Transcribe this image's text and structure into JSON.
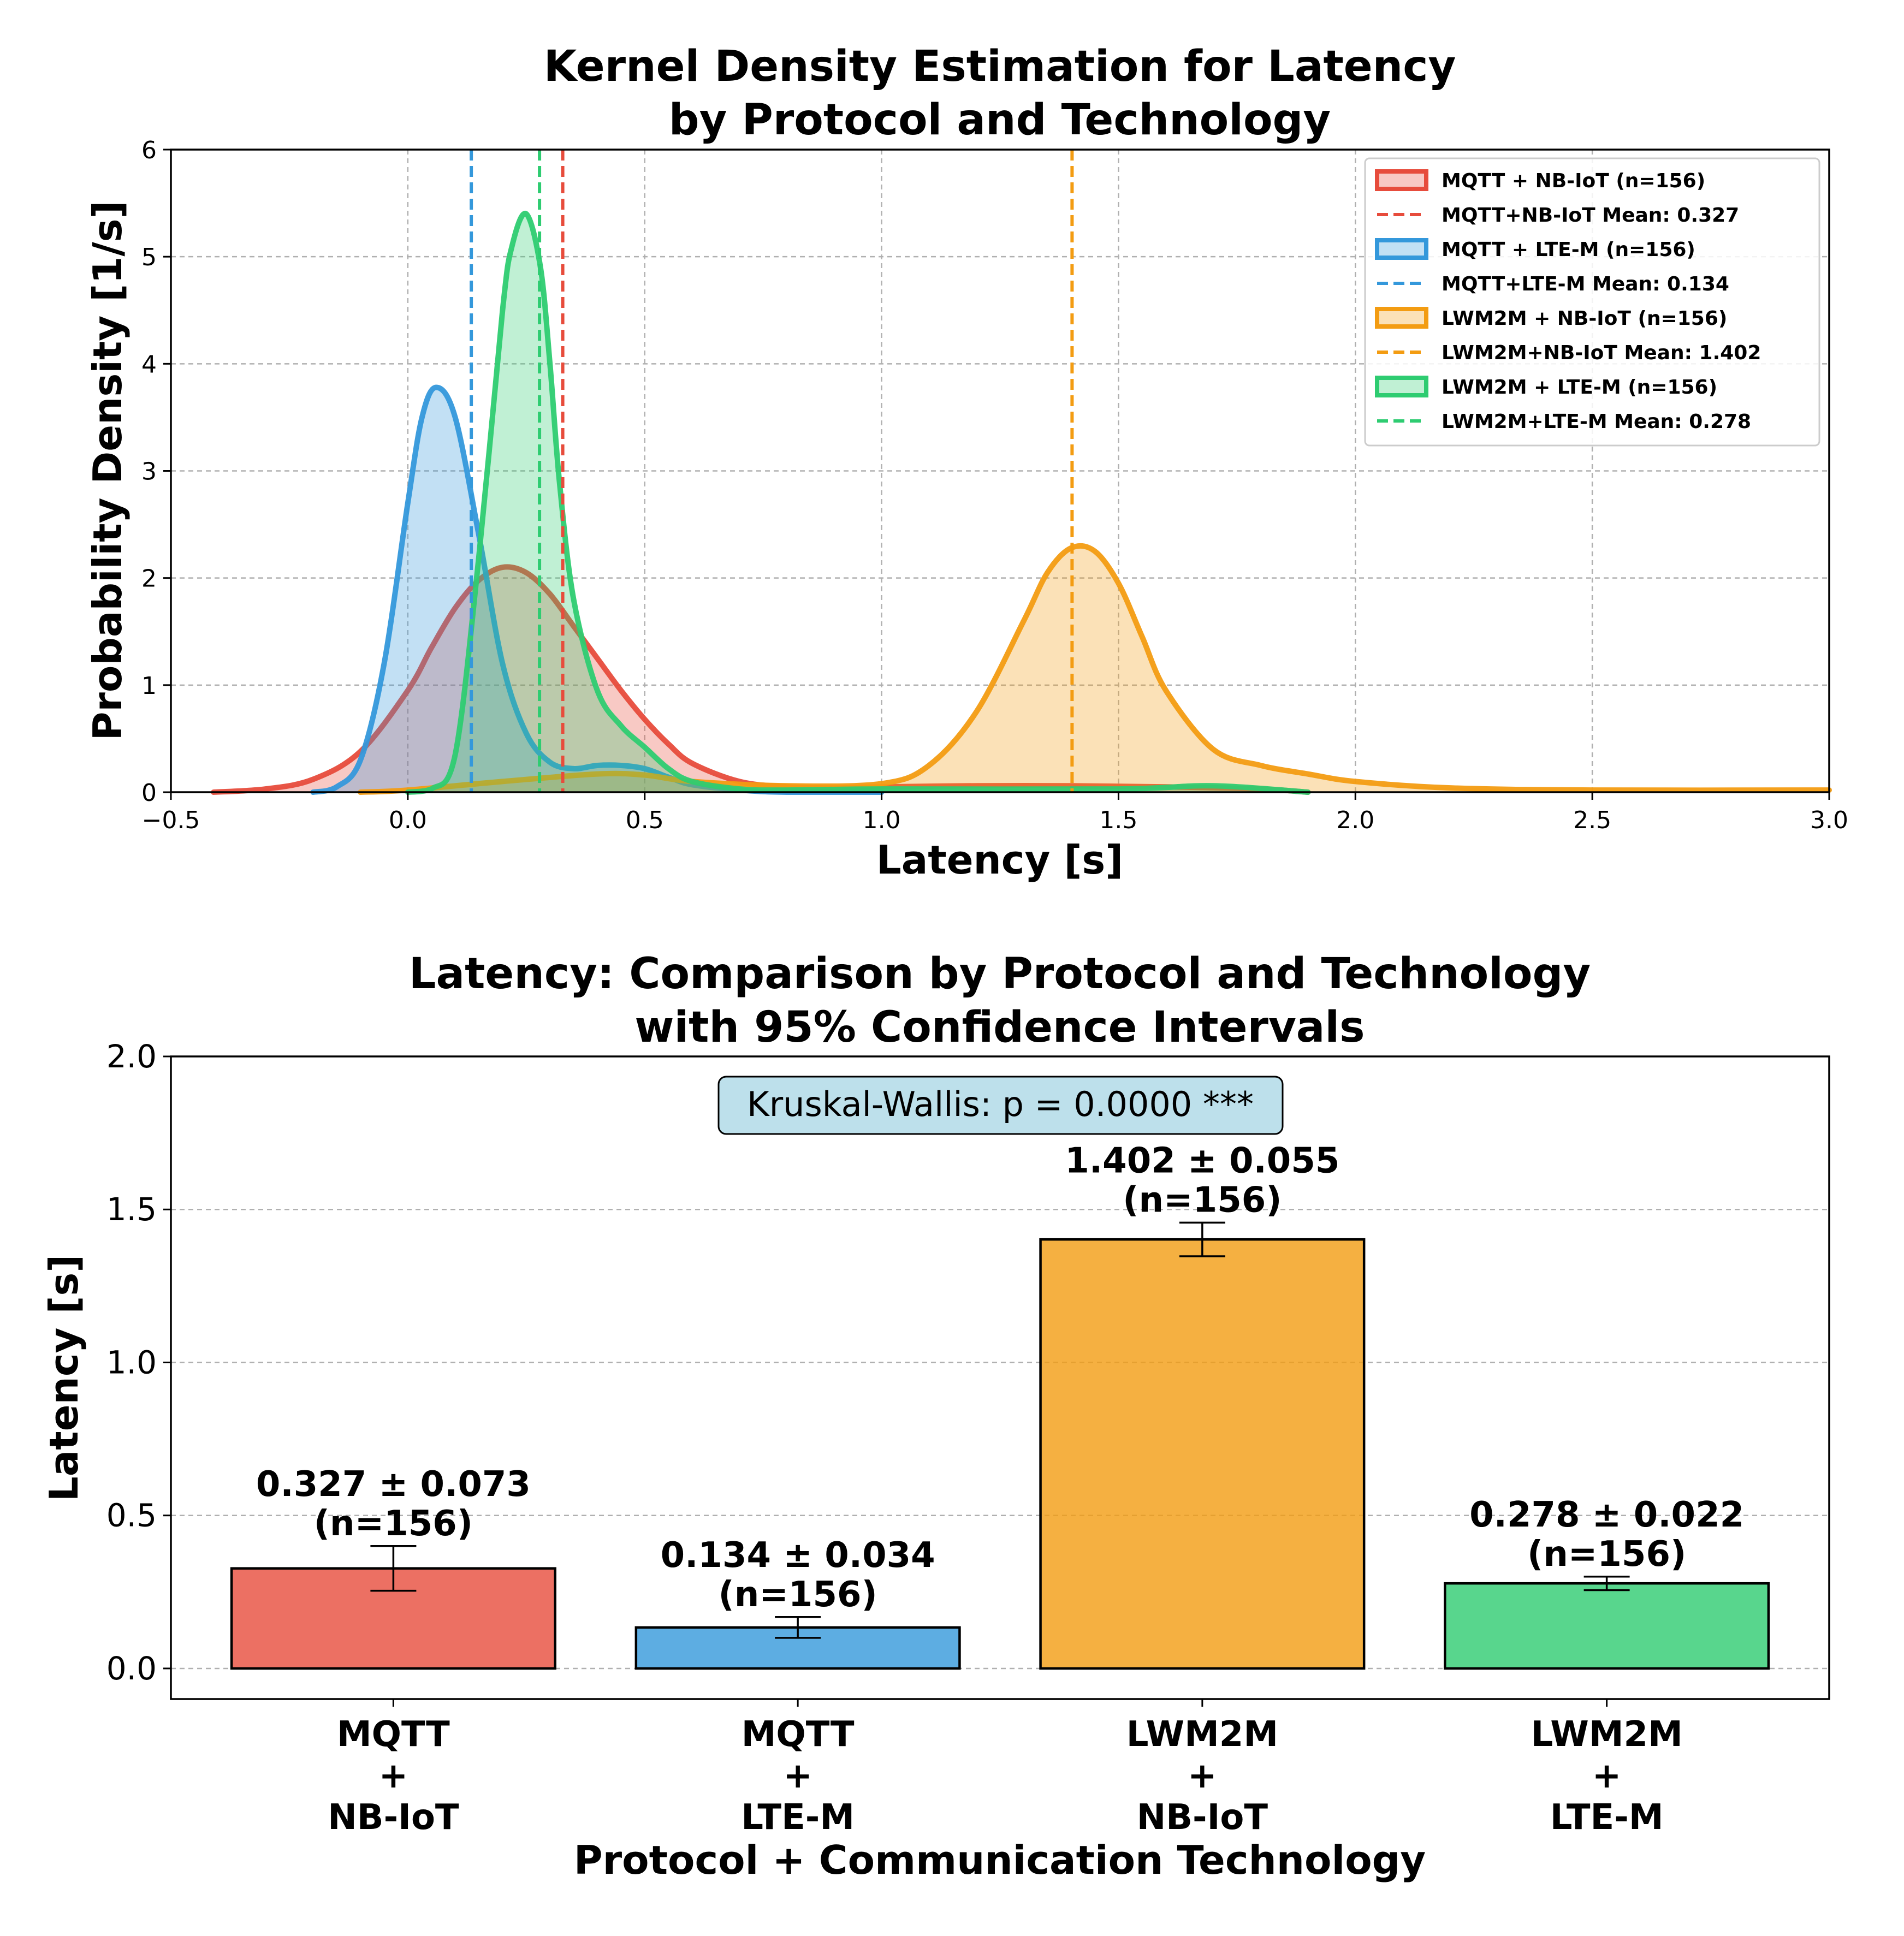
{
  "colors": {
    "mqtt_nbiot": "#e74c3c",
    "mqtt_ltem": "#3498db",
    "lwm2m_nbiot": "#f39c12",
    "lwm2m_ltem": "#2ecc71"
  },
  "chart_data": [
    {
      "type": "area",
      "title": "Kernel Density Estimation for Latency",
      "subtitle": "by Protocol and Technology",
      "xlabel": "Latency [s]",
      "ylabel": "Probability Density [1/s]",
      "xlim": [
        -0.5,
        3.0
      ],
      "ylim": [
        0,
        6
      ],
      "xticks": [
        -0.5,
        0.0,
        0.5,
        1.0,
        1.5,
        2.0,
        2.5,
        3.0
      ],
      "xtick_labels": [
        "−0.5",
        "0.0",
        "0.5",
        "1.0",
        "1.5",
        "2.0",
        "2.5",
        "3.0"
      ],
      "yticks": [
        0,
        1,
        2,
        3,
        4,
        5,
        6
      ],
      "ytick_labels": [
        "0",
        "1",
        "2",
        "3",
        "4",
        "5",
        "6"
      ],
      "grid": true,
      "legend_position": "top-right",
      "series": [
        {
          "key": "mqtt_nbiot",
          "legend_label": "MQTT + NB-IoT (n=156)",
          "mean_label": "MQTT+NB-IoT Mean: 0.327",
          "mean": 0.327,
          "x": [
            -0.41,
            -0.3,
            -0.2,
            -0.1,
            0.0,
            0.05,
            0.1,
            0.15,
            0.2,
            0.25,
            0.3,
            0.35,
            0.4,
            0.45,
            0.5,
            0.55,
            0.6,
            0.7,
            0.8,
            0.9,
            1.0,
            1.2,
            1.4,
            1.6,
            1.8,
            1.9
          ],
          "y": [
            0.0,
            0.03,
            0.12,
            0.38,
            0.95,
            1.35,
            1.72,
            1.98,
            2.1,
            2.05,
            1.85,
            1.55,
            1.25,
            0.95,
            0.68,
            0.45,
            0.27,
            0.1,
            0.05,
            0.04,
            0.05,
            0.06,
            0.06,
            0.05,
            0.03,
            0.0
          ]
        },
        {
          "key": "mqtt_ltem",
          "legend_label": "MQTT + LTE-M (n=156)",
          "mean_label": "MQTT+LTE-M Mean: 0.134",
          "mean": 0.134,
          "x": [
            -0.2,
            -0.15,
            -0.1,
            -0.05,
            0.0,
            0.03,
            0.06,
            0.1,
            0.15,
            0.2,
            0.25,
            0.3,
            0.35,
            0.4,
            0.45,
            0.5,
            0.55,
            0.6,
            0.7,
            0.8,
            1.0
          ],
          "y": [
            0.0,
            0.05,
            0.3,
            1.2,
            2.7,
            3.5,
            3.78,
            3.5,
            2.4,
            1.2,
            0.55,
            0.28,
            0.22,
            0.25,
            0.25,
            0.22,
            0.14,
            0.07,
            0.02,
            0.0,
            0.0
          ]
        },
        {
          "key": "lwm2m_nbiot",
          "legend_label": "LWM2M + NB-IoT (n=156)",
          "mean_label": "LWM2M+NB-IoT Mean: 1.402",
          "mean": 1.402,
          "x": [
            -0.1,
            0.0,
            0.2,
            0.4,
            0.5,
            0.6,
            0.8,
            1.0,
            1.1,
            1.2,
            1.3,
            1.35,
            1.4,
            1.45,
            1.5,
            1.55,
            1.6,
            1.7,
            1.8,
            1.9,
            2.0,
            2.2,
            2.5,
            3.0
          ],
          "y": [
            0.0,
            0.02,
            0.1,
            0.17,
            0.16,
            0.1,
            0.06,
            0.08,
            0.25,
            0.75,
            1.6,
            2.05,
            2.28,
            2.25,
            1.95,
            1.45,
            0.95,
            0.4,
            0.25,
            0.17,
            0.1,
            0.04,
            0.02,
            0.02
          ]
        },
        {
          "key": "lwm2m_ltem",
          "legend_label": "LWM2M + LTE-M (n=156)",
          "mean_label": "LWM2M+LTE-M Mean: 0.278",
          "mean": 0.278,
          "x": [
            0.0,
            0.05,
            0.1,
            0.15,
            0.2,
            0.22,
            0.25,
            0.28,
            0.3,
            0.32,
            0.35,
            0.4,
            0.45,
            0.5,
            0.55,
            0.6,
            0.7,
            0.8,
            1.0,
            1.5,
            1.7,
            1.9
          ],
          "y": [
            0.0,
            0.03,
            0.35,
            2.2,
            4.5,
            5.1,
            5.4,
            4.9,
            4.0,
            2.9,
            1.8,
            0.95,
            0.62,
            0.42,
            0.22,
            0.1,
            0.03,
            0.02,
            0.03,
            0.03,
            0.06,
            0.0
          ]
        }
      ]
    },
    {
      "type": "bar",
      "title": "Latency: Comparison by Protocol and Technology",
      "subtitle": "with 95% Confidence Intervals",
      "xlabel": "Protocol + Communication Technology",
      "ylabel": "Latency [s]",
      "ylim": [
        -0.1,
        2.0
      ],
      "yticks": [
        0.0,
        0.5,
        1.0,
        1.5,
        2.0
      ],
      "ytick_labels": [
        "0.0",
        "0.5",
        "1.0",
        "1.5",
        "2.0"
      ],
      "grid": true,
      "annotation": "Kruskal-Wallis: p = 0.0000 ***",
      "categories": [
        {
          "key": "mqtt_nbiot",
          "lines": [
            "MQTT",
            "+",
            "NB-IoT"
          ]
        },
        {
          "key": "mqtt_ltem",
          "lines": [
            "MQTT",
            "+",
            "LTE-M"
          ]
        },
        {
          "key": "lwm2m_nbiot",
          "lines": [
            "LWM2M",
            "+",
            "NB-IoT"
          ]
        },
        {
          "key": "lwm2m_ltem",
          "lines": [
            "LWM2M",
            "+",
            "LTE-M"
          ]
        }
      ],
      "values": [
        0.327,
        0.134,
        1.402,
        0.278
      ],
      "errors": [
        0.073,
        0.034,
        0.055,
        0.022
      ],
      "value_labels": [
        "0.327 ± 0.073",
        "0.134 ± 0.034",
        "1.402 ± 0.055",
        "0.278 ± 0.022"
      ],
      "n_labels": [
        "(n=156)",
        "(n=156)",
        "(n=156)",
        "(n=156)"
      ]
    }
  ]
}
